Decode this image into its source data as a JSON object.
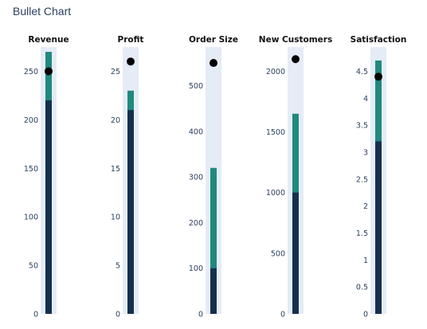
{
  "title": "Bullet Chart",
  "colors": {
    "background_band": "#e5ecf6",
    "actual": "#14304f",
    "comparative": "#21897e",
    "target_marker": "#000000",
    "tick_text": "#2a3f5f"
  },
  "chart_data": [
    {
      "type": "bar",
      "title": "Revenue",
      "ylim": [
        0,
        275
      ],
      "ticks": [
        0,
        50,
        100,
        150,
        200,
        250
      ],
      "range": 275,
      "actual": 220,
      "comparative": 270,
      "target": 250
    },
    {
      "type": "bar",
      "title": "Profit",
      "ylim": [
        0,
        27.5
      ],
      "ticks": [
        0,
        5,
        10,
        15,
        20,
        25
      ],
      "range": 27.5,
      "actual": 21,
      "comparative": 23,
      "target": 26
    },
    {
      "type": "bar",
      "title": "Order Size",
      "ylim": [
        0,
        585
      ],
      "ticks": [
        0,
        100,
        200,
        300,
        400,
        500
      ],
      "range": 585,
      "actual": 100,
      "comparative": 320,
      "target": 550
    },
    {
      "type": "bar",
      "title": "New Customers",
      "ylim": [
        0,
        2200
      ],
      "ticks": [
        0,
        500,
        1000,
        1500,
        2000
      ],
      "range": 2200,
      "actual": 1000,
      "comparative": 1650,
      "target": 2100
    },
    {
      "type": "bar",
      "title": "Satisfaction",
      "ylim": [
        0,
        4.95
      ],
      "ticks": [
        0,
        0.5,
        1,
        1.5,
        2,
        2.5,
        3,
        3.5,
        4,
        4.5
      ],
      "range": 4.95,
      "actual": 3.2,
      "comparative": 4.7,
      "target": 4.4
    }
  ]
}
